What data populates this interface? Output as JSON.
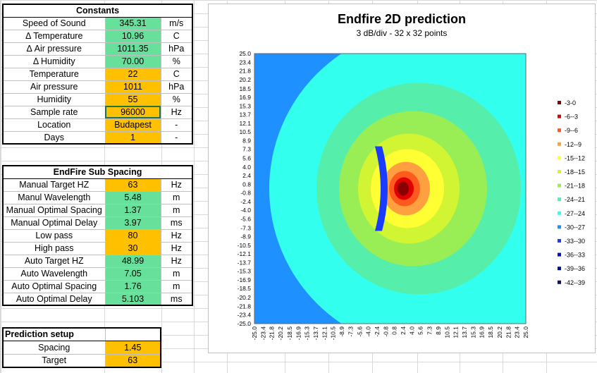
{
  "constants": {
    "header": "Constants",
    "rows": [
      {
        "label": "Speed of Sound",
        "value": "345.31",
        "unit": "m/s",
        "style": "val"
      },
      {
        "label": "Δ Temperature",
        "value": "10.96",
        "unit": "C",
        "style": "val"
      },
      {
        "label": "Δ Air pressure",
        "value": "1011.35",
        "unit": "hPa",
        "style": "val"
      },
      {
        "label": "Δ Humidity",
        "value": "70.00",
        "unit": "%",
        "style": "val"
      },
      {
        "label": "Temperature",
        "value": "22",
        "unit": "C",
        "style": "inp"
      },
      {
        "label": "Air pressure",
        "value": "1011",
        "unit": "hPa",
        "style": "inp"
      },
      {
        "label": "Humidity",
        "value": "55",
        "unit": "%",
        "style": "inp"
      },
      {
        "label": "Sample rate",
        "value": "96000",
        "unit": "Hz",
        "style": "inp sel"
      },
      {
        "label": "Location",
        "value": "Budapest",
        "unit": "-",
        "style": "inp"
      },
      {
        "label": "Days",
        "value": "1",
        "unit": "-",
        "style": "inp"
      }
    ]
  },
  "endfire": {
    "header": "EndFire Sub Spacing",
    "rows": [
      {
        "label": "Manual Target HZ",
        "value": "63",
        "unit": "Hz",
        "style": "inp"
      },
      {
        "label": "Manul Wavelength",
        "value": "5.48",
        "unit": "m",
        "style": "val"
      },
      {
        "label": "Manual Optimal Spacing",
        "value": "1.37",
        "unit": "m",
        "style": "val"
      },
      {
        "label": "Manual Optimal Delay",
        "value": "3.97",
        "unit": "ms",
        "style": "val"
      },
      {
        "label": "Low pass",
        "value": "80",
        "unit": "Hz",
        "style": "inp"
      },
      {
        "label": "High pass",
        "value": "30",
        "unit": "Hz",
        "style": "inp"
      },
      {
        "label": "Auto Target HZ",
        "value": "48.99",
        "unit": "Hz",
        "style": "val"
      },
      {
        "label": "Auto Wavelength",
        "value": "7.05",
        "unit": "m",
        "style": "val"
      },
      {
        "label": "Auto Optimal Spacing",
        "value": "1.76",
        "unit": "m",
        "style": "val"
      },
      {
        "label": "Auto Optimal Delay",
        "value": "5.103",
        "unit": "ms",
        "style": "val"
      }
    ]
  },
  "prediction": {
    "header": "Prediction setup",
    "rows": [
      {
        "label": "Spacing",
        "value": "1.45",
        "style": "inp"
      },
      {
        "label": "Target",
        "value": "63",
        "style": "inp"
      }
    ]
  },
  "colors": {
    "computed": "#66e09a",
    "input": "#ffc000"
  },
  "chart_data": {
    "type": "heatmap",
    "title": "Endfire 2D prediction",
    "subtitle": "3 dB/div - 32 x 32 points",
    "xlabel": "",
    "ylabel": "",
    "ticks": [
      "25.0",
      "23.4",
      "21.8",
      "20.2",
      "18.5",
      "16.9",
      "15.3",
      "13.7",
      "12.1",
      "10.5",
      "8.9",
      "7.3",
      "5.6",
      "4.0",
      "2.4",
      "0.8",
      "-0.8",
      "-2.4",
      "-4.0",
      "-5.6",
      "-7.3",
      "-8.9",
      "-10.5",
      "-12.1",
      "-13.7",
      "-15.3",
      "-16.9",
      "-18.5",
      "-20.2",
      "-21.8",
      "-23.4",
      "-25.0"
    ],
    "x_ticks": [
      "-25.0",
      "-23.4",
      "-21.8",
      "-20.2",
      "-18.5",
      "-16.9",
      "-15.3",
      "-13.7",
      "-12.1",
      "-10.5",
      "-8.9",
      "-7.3",
      "-5.6",
      "-4.0",
      "-2.4",
      "-0.8",
      "0.8",
      "2.4",
      "4.0",
      "5.6",
      "7.3",
      "8.9",
      "10.5",
      "12.1",
      "13.7",
      "15.3",
      "16.9",
      "18.5",
      "20.2",
      "21.8",
      "23.4",
      "25.0"
    ],
    "xlim": [
      -25,
      25
    ],
    "ylim": [
      -25,
      25
    ],
    "source_position": [
      2.4,
      0.0
    ],
    "legend_placement": "right",
    "legend": [
      {
        "label": "-3-0",
        "color": "#8b0000"
      },
      {
        "label": "-6--3",
        "color": "#e00000"
      },
      {
        "label": "-9--6",
        "color": "#ff5a1e"
      },
      {
        "label": "-12--9",
        "color": "#ffa040"
      },
      {
        "label": "-15--12",
        "color": "#ffff33"
      },
      {
        "label": "-18--15",
        "color": "#d2f533"
      },
      {
        "label": "-21--18",
        "color": "#99ee55"
      },
      {
        "label": "-24--21",
        "color": "#55eeaa"
      },
      {
        "label": "-27--24",
        "color": "#33ffee"
      },
      {
        "label": "-30--27",
        "color": "#1e90ff"
      },
      {
        "label": "-33--30",
        "color": "#1a3cff"
      },
      {
        "label": "-36--33",
        "color": "#0010c8"
      },
      {
        "label": "-39--36",
        "color": "#001090"
      },
      {
        "label": "-42--39",
        "color": "#0a1460"
      }
    ]
  }
}
